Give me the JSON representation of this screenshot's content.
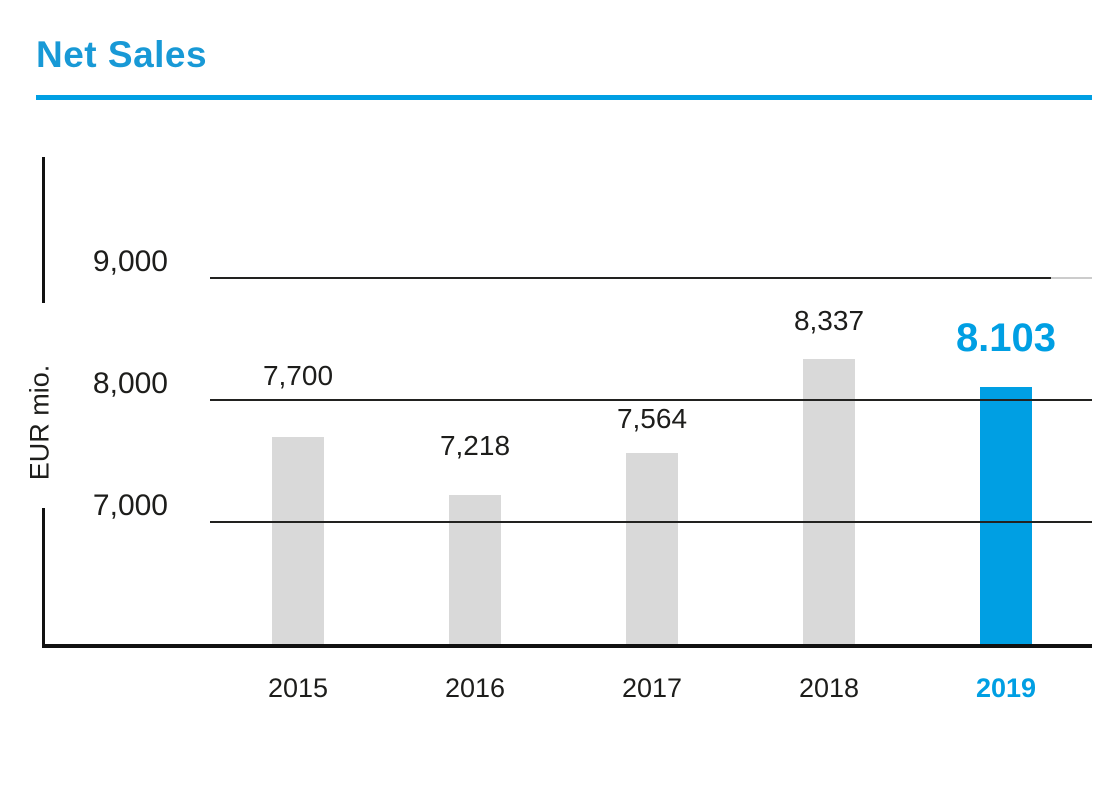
{
  "header": {
    "title": "Net Sales"
  },
  "colors": {
    "title_blue": "#1899d6",
    "accent_blue": "#009fe3",
    "bar_grey": "#d9d9d9",
    "text_dark": "#1d1d1b",
    "gridline_dark": "#222220",
    "gridline_light": "#cccccc",
    "axis_black": "#111111"
  },
  "chart_data": {
    "type": "bar",
    "title": "Net Sales",
    "xlabel": "",
    "ylabel": "EUR mio.",
    "categories": [
      "2015",
      "2016",
      "2017",
      "2018",
      "2019"
    ],
    "values": [
      7700,
      7218,
      7564,
      8337,
      8103
    ],
    "value_labels": [
      "7,700",
      "7,218",
      "7,564",
      "8,337",
      "8.103"
    ],
    "highlight_index": 4,
    "ylim": [
      6000,
      10000
    ],
    "y_ticks": [
      {
        "value": 7000,
        "label": "7,000",
        "short_right": false
      },
      {
        "value": 8000,
        "label": "8,000",
        "short_right": false
      },
      {
        "value": 9000,
        "label": "9,000",
        "short_right": true
      }
    ],
    "grid": true,
    "legend": false
  }
}
